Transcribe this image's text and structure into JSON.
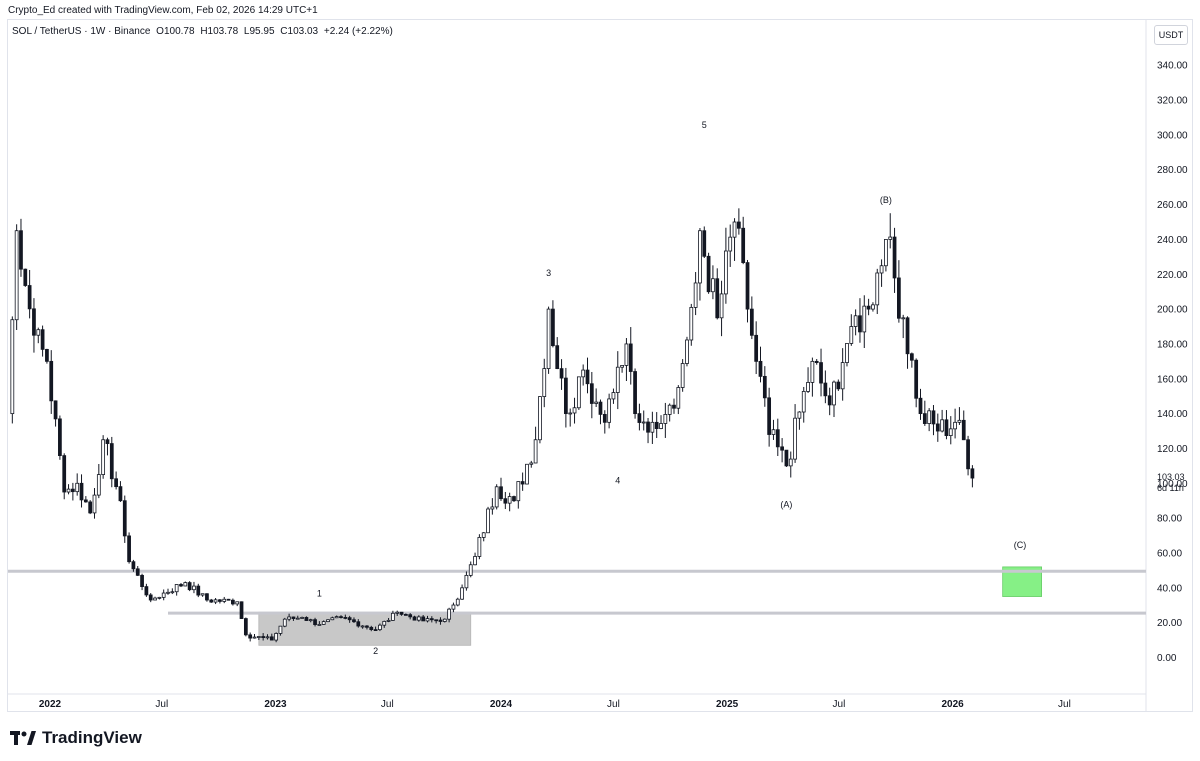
{
  "header": {
    "attribution": "Crypto_Ed created with TradingView.com, Feb 02, 2026 14:29 UTC+1"
  },
  "legend": {
    "symbol": "SOL / TetherUS · 1W · Binance",
    "open": "O100.78",
    "high": "H103.78",
    "low": "L95.95",
    "close": "C103.03",
    "change": "+2.24 (+2.22%)"
  },
  "currency_button": "USDT",
  "footer": {
    "brand": "TradingView"
  },
  "colors": {
    "candle": "#131722",
    "zone_gray": "#c8c8c8",
    "zone_green": "#86f086",
    "level_line": "#c7c8cf"
  },
  "chart_data": {
    "type": "candlestick",
    "y_axis_unit": "USDT",
    "ylim": [
      -8,
      350
    ],
    "y_ticks": [
      "340.00",
      "320.00",
      "300.00",
      "280.00",
      "260.00",
      "240.00",
      "220.00",
      "200.00",
      "180.00",
      "160.00",
      "140.00",
      "120.00",
      "100.00",
      "80.00",
      "60.00",
      "40.00",
      "20.00",
      "0.00"
    ],
    "x_ticks": [
      {
        "label": "2022",
        "date": "2022-01-01",
        "bold": true
      },
      {
        "label": "Jul",
        "date": "2022-07-01",
        "bold": false
      },
      {
        "label": "2023",
        "date": "2023-01-01",
        "bold": true
      },
      {
        "label": "Jul",
        "date": "2023-07-01",
        "bold": false
      },
      {
        "label": "2024",
        "date": "2024-01-01",
        "bold": true
      },
      {
        "label": "Jul",
        "date": "2024-07-01",
        "bold": false
      },
      {
        "label": "2025",
        "date": "2025-01-01",
        "bold": true
      },
      {
        "label": "Jul",
        "date": "2025-07-01",
        "bold": false
      },
      {
        "label": "2026",
        "date": "2026-01-01",
        "bold": true
      },
      {
        "label": "Jul",
        "date": "2026-07-01",
        "bold": false
      }
    ],
    "x_range": [
      "2021-10-25",
      "2026-11-10"
    ],
    "last_price": {
      "value": "103.03",
      "countdown": "6d 11h",
      "price": 103.03
    },
    "horizontal_levels": [
      49.5,
      25.5
    ],
    "zones": [
      {
        "name": "accumulation-range",
        "from": "2022-12-05",
        "to": "2023-11-13",
        "low": 7,
        "high": 26
      },
      {
        "name": "target-zone-c",
        "from": "2026-03-23",
        "to": "2026-05-25",
        "low": 35,
        "high": 52
      }
    ],
    "wave_labels": [
      {
        "text": "1",
        "date": "2023-03-13",
        "price": 35
      },
      {
        "text": "2",
        "date": "2023-06-12",
        "price": 2
      },
      {
        "text": "3",
        "date": "2024-03-18",
        "price": 219
      },
      {
        "text": "4",
        "date": "2024-07-08",
        "price": 100
      },
      {
        "text": "5",
        "date": "2024-11-25",
        "price": 304
      },
      {
        "text": "(A)",
        "date": "2025-04-07",
        "price": 86
      },
      {
        "text": "(B)",
        "date": "2025-09-15",
        "price": 261
      },
      {
        "text": "(C)",
        "date": "2026-04-20",
        "price": 63
      }
    ],
    "keypoints": [
      [
        "2021-10-25",
        140
      ],
      [
        "2021-11-08",
        245
      ],
      [
        "2021-12-06",
        185
      ],
      [
        "2021-12-27",
        170
      ],
      [
        "2022-01-24",
        95
      ],
      [
        "2022-02-14",
        100
      ],
      [
        "2022-03-07",
        83
      ],
      [
        "2022-03-28",
        125
      ],
      [
        "2022-04-25",
        90
      ],
      [
        "2022-05-09",
        55
      ],
      [
        "2022-06-13",
        33
      ],
      [
        "2022-07-04",
        37
      ],
      [
        "2022-08-08",
        43
      ],
      [
        "2022-09-12",
        33
      ],
      [
        "2022-10-31",
        32
      ],
      [
        "2022-11-14",
        13
      ],
      [
        "2022-12-26",
        10
      ],
      [
        "2023-01-16",
        22
      ],
      [
        "2023-02-13",
        23
      ],
      [
        "2023-03-13",
        19
      ],
      [
        "2023-04-17",
        23
      ],
      [
        "2023-06-12",
        16
      ],
      [
        "2023-07-17",
        26
      ],
      [
        "2023-08-28",
        21
      ],
      [
        "2023-10-02",
        22
      ],
      [
        "2023-10-30",
        40
      ],
      [
        "2023-11-20",
        58
      ],
      [
        "2023-12-25",
        98
      ],
      [
        "2024-01-22",
        90
      ],
      [
        "2024-02-26",
        125
      ],
      [
        "2024-03-18",
        200
      ],
      [
        "2024-04-15",
        140
      ],
      [
        "2024-05-13",
        165
      ],
      [
        "2024-06-17",
        135
      ],
      [
        "2024-07-22",
        180
      ],
      [
        "2024-08-05",
        140
      ],
      [
        "2024-09-02",
        135
      ],
      [
        "2024-10-14",
        155
      ],
      [
        "2024-11-11",
        215
      ],
      [
        "2024-11-18",
        245
      ],
      [
        "2024-12-16",
        195
      ],
      [
        "2025-01-13",
        250
      ],
      [
        "2025-02-03",
        200
      ],
      [
        "2025-02-17",
        170
      ],
      [
        "2025-03-10",
        128
      ],
      [
        "2025-04-07",
        110
      ],
      [
        "2025-05-19",
        170
      ],
      [
        "2025-06-16",
        145
      ],
      [
        "2025-07-21",
        190
      ],
      [
        "2025-08-18",
        200
      ],
      [
        "2025-09-15",
        240
      ],
      [
        "2025-10-13",
        195
      ],
      [
        "2025-11-10",
        140
      ],
      [
        "2025-12-08",
        130
      ],
      [
        "2026-01-05",
        135
      ],
      [
        "2026-01-19",
        125
      ],
      [
        "2026-02-02",
        103
      ]
    ]
  }
}
